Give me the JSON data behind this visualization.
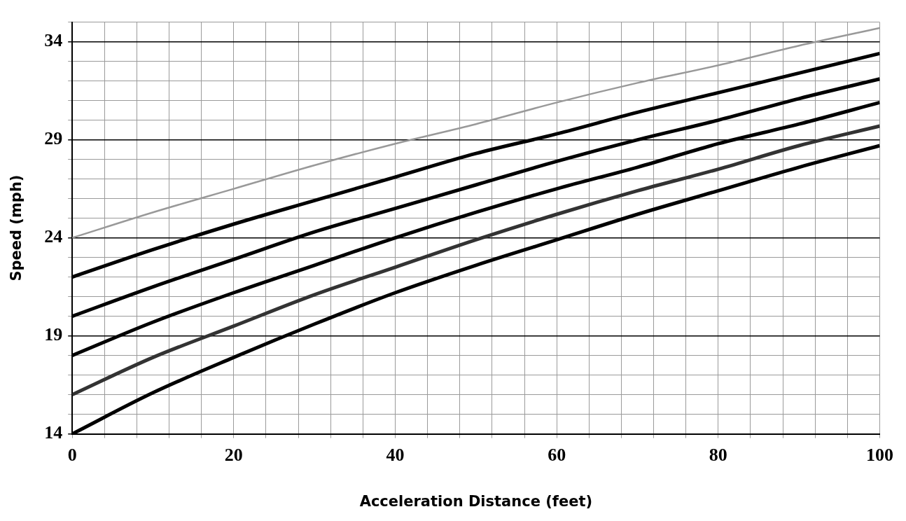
{
  "chart_data": {
    "type": "line",
    "xlabel": "Acceleration Distance (feet)",
    "ylabel": "Speed (mph)",
    "x": [
      0,
      10,
      20,
      30,
      40,
      50,
      60,
      70,
      80,
      90,
      100
    ],
    "series": [
      {
        "color": "#999999",
        "values": [
          24,
          25.3,
          26.5,
          27.7,
          28.8,
          29.8,
          30.9,
          31.9,
          32.8,
          33.8,
          34.7
        ]
      },
      {
        "color": "#000000",
        "values": [
          22,
          23.4,
          24.7,
          25.9,
          27.1,
          28.3,
          29.3,
          30.4,
          31.4,
          32.4,
          33.4
        ]
      },
      {
        "color": "#000000",
        "values": [
          20,
          21.5,
          22.9,
          24.3,
          25.5,
          26.7,
          27.9,
          29,
          30,
          31.1,
          32.1
        ]
      },
      {
        "color": "#000000",
        "values": [
          18,
          19.7,
          21.2,
          22.6,
          24,
          25.3,
          26.5,
          27.6,
          28.8,
          29.8,
          30.9
        ]
      },
      {
        "color": "#333333",
        "values": [
          16,
          17.9,
          19.5,
          21.1,
          22.5,
          23.9,
          25.2,
          26.4,
          27.5,
          28.7,
          29.7
        ]
      },
      {
        "color": "#000000",
        "values": [
          14,
          16.1,
          17.9,
          19.6,
          21.2,
          22.6,
          23.9,
          25.2,
          26.4,
          27.6,
          28.7
        ]
      }
    ],
    "xlim": [
      0,
      100
    ],
    "ylim": [
      14,
      35
    ],
    "xticks": [
      0,
      {
        "value": 4,
        "label": null
      },
      {
        "value": 8,
        "label": null
      },
      {
        "value": 12,
        "label": null
      },
      {
        "value": 16,
        "label": null
      },
      20,
      {
        "value": 24,
        "label": null
      },
      {
        "value": 28,
        "label": null
      },
      {
        "value": 32,
        "label": null
      },
      {
        "value": 36,
        "label": null
      },
      40,
      {
        "value": 44,
        "label": null
      },
      {
        "value": 48,
        "label": null
      },
      {
        "value": 52,
        "label": null
      },
      {
        "value": 56,
        "label": null
      },
      60,
      {
        "value": 64,
        "label": null
      },
      {
        "value": 68,
        "label": null
      },
      {
        "value": 72,
        "label": null
      },
      {
        "value": 76,
        "label": null
      },
      80,
      {
        "value": 84,
        "label": null
      },
      {
        "value": 88,
        "label": null
      },
      {
        "value": 92,
        "label": null
      },
      {
        "value": 96,
        "label": null
      },
      100
    ],
    "yticks": [
      14,
      {
        "value": 15,
        "label": null
      },
      {
        "value": 16,
        "label": null
      },
      {
        "value": 17,
        "label": null
      },
      {
        "value": 18,
        "label": null
      },
      19,
      {
        "value": 20,
        "label": null
      },
      {
        "value": 21,
        "label": null
      },
      {
        "value": 22,
        "label": null
      },
      {
        "value": 23,
        "label": null
      },
      24,
      {
        "value": 25,
        "label": null
      },
      {
        "value": 26,
        "label": null
      },
      {
        "value": 27,
        "label": null
      },
      {
        "value": 28,
        "label": null
      },
      29,
      {
        "value": 30,
        "label": null
      },
      {
        "value": 31,
        "label": null
      },
      {
        "value": 32,
        "label": null
      },
      {
        "value": 33,
        "label": null
      },
      34,
      {
        "value": 35,
        "label": null
      }
    ],
    "grid": true,
    "marker": "none",
    "line_style": "solid"
  }
}
